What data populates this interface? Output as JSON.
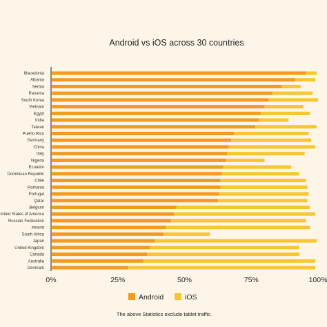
{
  "chart_data": {
    "type": "bar",
    "stacked": true,
    "orientation": "horizontal",
    "title": "Android vs iOS across 30 countries",
    "footnote": "The above Statistics exclude tablet traffic.",
    "categories": [
      "Macedonia",
      "Albania",
      "Serbia",
      "Panama",
      "South Korea",
      "Vietnam",
      "Egypt",
      "India",
      "Taiwan",
      "Puerto Rico",
      "Germany",
      "China",
      "Italy",
      "Nigeria",
      "Ecuador",
      "Dominican Republic",
      "Chile",
      "Romania",
      "Portugal",
      "Qatar",
      "Belgium",
      "United States of America",
      "Russian Federation",
      "Ireland",
      "South Africa",
      "Japan",
      "United Kingdom",
      "Canada",
      "Australia",
      "Denmark"
    ],
    "series": [
      {
        "name": "Android",
        "color": "#f39a1f",
        "values": [
          95.5,
          91.5,
          86.5,
          83,
          81.5,
          80,
          78.5,
          78,
          76.5,
          68.5,
          67.5,
          66.5,
          66,
          65.5,
          64.5,
          64,
          63.5,
          63.5,
          63,
          62.5,
          47,
          46,
          45,
          43,
          42,
          39,
          37,
          36,
          34.5,
          29
        ]
      },
      {
        "name": "iOS",
        "color": "#f7c631",
        "values": [
          4,
          7.5,
          7,
          15,
          18.5,
          14.5,
          18.5,
          11,
          23,
          28,
          30,
          32.5,
          29,
          14.5,
          25.5,
          29,
          32,
          32.5,
          33.5,
          33.5,
          50,
          53,
          50.5,
          54,
          17.5,
          60.5,
          56,
          57,
          64.5,
          70
        ]
      }
    ],
    "xlim": [
      0,
      100
    ],
    "xticks": [
      "0%",
      "25%",
      "50%",
      "75%",
      "100%"
    ],
    "grid": false,
    "legend_position": "bottom"
  }
}
